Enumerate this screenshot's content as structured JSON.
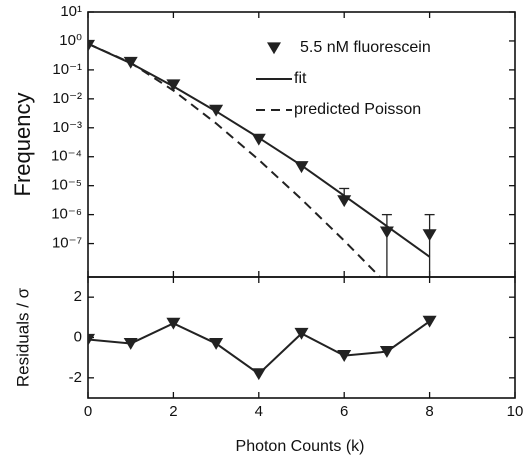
{
  "chart_data": [
    {
      "type": "line",
      "ylabel": "Frequency",
      "log_y": true,
      "legend": "upper right",
      "xlim": [
        0,
        10
      ],
      "xticks": [
        0,
        2,
        4,
        6,
        8,
        10
      ],
      "ylim": [
        7e-09,
        10
      ],
      "yticks": [
        {
          "value": 10,
          "label": "10¹"
        },
        {
          "value": 1,
          "label": "10⁰"
        },
        {
          "value": 0.1,
          "label": "10⁻¹"
        },
        {
          "value": 0.01,
          "label": "10⁻²"
        },
        {
          "value": 0.001,
          "label": "10⁻³"
        },
        {
          "value": 0.0001,
          "label": "10⁻⁴"
        },
        {
          "value": 1e-05,
          "label": "10⁻⁵"
        },
        {
          "value": 1e-06,
          "label": "10⁻⁶"
        },
        {
          "value": 1e-07,
          "label": "10⁻⁷"
        }
      ],
      "series": [
        {
          "name": "5.5 nM fluorescein",
          "style": "markers",
          "color": "#222222",
          "x": [
            0,
            1,
            2,
            3,
            4,
            5,
            6,
            7,
            8
          ],
          "values": [
            0.7,
            0.18,
            0.03,
            0.004,
            0.0004,
            4.5e-05,
            3e-06,
            2.5e-07,
            2e-07
          ],
          "error_low": [
            null,
            null,
            null,
            null,
            null,
            null,
            2e-06,
            1e-09,
            1e-09
          ],
          "error_high": [
            null,
            null,
            null,
            null,
            null,
            null,
            8e-06,
            1e-06,
            1e-06
          ]
        },
        {
          "name": "fit",
          "style": "solid",
          "color": "#222222",
          "x": [
            0,
            1,
            2,
            3,
            4,
            5,
            6,
            7,
            8
          ],
          "values": [
            0.8,
            0.17,
            0.027,
            0.0037,
            0.00045,
            5e-05,
            4.5e-06,
            4e-07,
            3.5e-08
          ]
        },
        {
          "name": "predicted Poisson",
          "style": "dashed",
          "color": "#222222",
          "x": [
            0,
            1,
            2,
            3,
            4,
            5,
            6,
            7
          ],
          "values": [
            0.8,
            0.176,
            0.0194,
            0.00142,
            7.8e-05,
            3.4e-06,
            1.26e-07,
            4e-09
          ]
        }
      ]
    },
    {
      "type": "line",
      "ylabel": "Residuals / σ",
      "xlabel": "Photon Counts (k)",
      "xlim": [
        0,
        10
      ],
      "xticks": [
        0,
        2,
        4,
        6,
        8,
        10
      ],
      "ylim": [
        -3,
        3
      ],
      "yticks": [
        -2,
        0,
        2
      ],
      "series": [
        {
          "style": "markers-line",
          "color": "#222222",
          "x": [
            0,
            1,
            2,
            3,
            4,
            5,
            6,
            7,
            8
          ],
          "values": [
            -0.1,
            -0.3,
            0.7,
            -0.3,
            -1.8,
            0.2,
            -0.9,
            -0.7,
            0.8
          ]
        }
      ]
    }
  ]
}
